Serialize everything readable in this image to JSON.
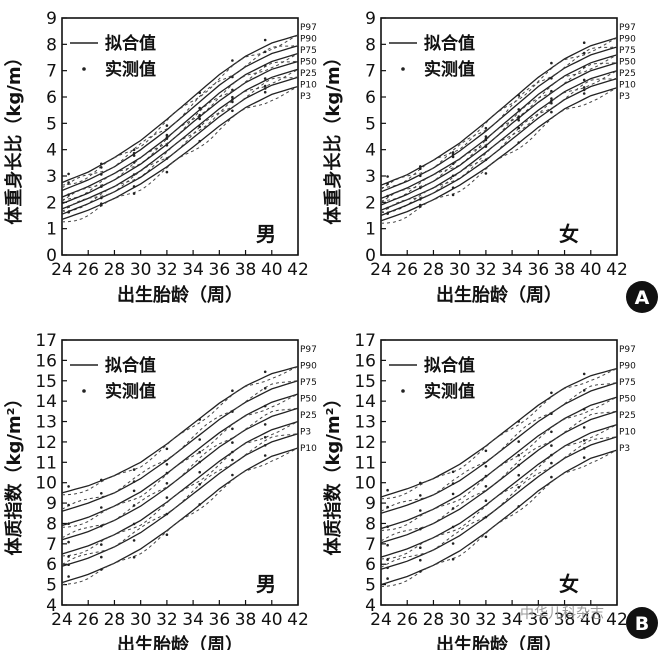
{
  "panel_letters": [
    "A",
    "B"
  ],
  "watermark": {
    "text": "中华儿科杂志"
  },
  "chart_data": [
    {
      "type": "line",
      "ylabel": "体重身长比（kg/m）",
      "xlabel": "出生胎龄（周）",
      "xlim": [
        24,
        42
      ],
      "ylim": [
        0,
        9
      ],
      "xticks": [
        24,
        26,
        28,
        30,
        32,
        34,
        36,
        38,
        40,
        42
      ],
      "yticks": [
        0,
        1,
        2,
        3,
        4,
        5,
        6,
        7,
        8,
        9
      ],
      "sex": "男",
      "legend": [
        {
          "label": "拟合值",
          "style": "solid"
        },
        {
          "label": "实测值",
          "style": "dots"
        }
      ],
      "percentile_labels": [
        "P97",
        "P90",
        "P75",
        "P50",
        "P25",
        "P10",
        "P3"
      ],
      "x": [
        24,
        26,
        28,
        30,
        32,
        34,
        36,
        38,
        40,
        42
      ],
      "series": [
        {
          "name": "P97",
          "values": [
            2.75,
            3.15,
            3.7,
            4.35,
            5.15,
            6.0,
            6.85,
            7.55,
            8.05,
            8.35
          ]
        },
        {
          "name": "P90",
          "values": [
            2.45,
            2.85,
            3.35,
            4.0,
            4.75,
            5.6,
            6.45,
            7.15,
            7.65,
            7.95
          ]
        },
        {
          "name": "P75",
          "values": [
            2.2,
            2.6,
            3.1,
            3.7,
            4.45,
            5.3,
            6.15,
            6.85,
            7.35,
            7.65
          ]
        },
        {
          "name": "P50",
          "values": [
            1.95,
            2.35,
            2.85,
            3.45,
            4.2,
            5.05,
            5.85,
            6.55,
            7.05,
            7.35
          ]
        },
        {
          "name": "P25",
          "values": [
            1.75,
            2.15,
            2.6,
            3.2,
            3.95,
            4.75,
            5.55,
            6.25,
            6.75,
            7.05
          ]
        },
        {
          "name": "P10",
          "values": [
            1.55,
            1.95,
            2.4,
            2.95,
            3.65,
            4.45,
            5.25,
            5.95,
            6.45,
            6.75
          ]
        },
        {
          "name": "P3",
          "values": [
            1.35,
            1.7,
            2.15,
            2.7,
            3.35,
            4.1,
            4.9,
            5.6,
            6.1,
            6.4
          ]
        }
      ]
    },
    {
      "type": "line",
      "ylabel": "体重身长比（kg/m）",
      "xlabel": "出生胎龄（周）",
      "xlim": [
        24,
        42
      ],
      "ylim": [
        0,
        9
      ],
      "xticks": [
        24,
        26,
        28,
        30,
        32,
        34,
        36,
        38,
        40,
        42
      ],
      "yticks": [
        0,
        1,
        2,
        3,
        4,
        5,
        6,
        7,
        8,
        9
      ],
      "sex": "女",
      "legend": [
        {
          "label": "拟合值",
          "style": "solid"
        },
        {
          "label": "实测值",
          "style": "dots"
        }
      ],
      "percentile_labels": [
        "P97",
        "P90",
        "P75",
        "P50",
        "P25",
        "P10",
        "P3"
      ],
      "x": [
        24,
        26,
        28,
        30,
        32,
        34,
        36,
        38,
        40,
        42
      ],
      "series": [
        {
          "name": "P97",
          "values": [
            2.65,
            3.05,
            3.6,
            4.25,
            5.05,
            5.9,
            6.75,
            7.45,
            7.95,
            8.25
          ]
        },
        {
          "name": "P90",
          "values": [
            2.4,
            2.8,
            3.3,
            3.95,
            4.7,
            5.55,
            6.4,
            7.1,
            7.6,
            7.9
          ]
        },
        {
          "name": "P75",
          "values": [
            2.15,
            2.55,
            3.05,
            3.65,
            4.4,
            5.25,
            6.1,
            6.8,
            7.3,
            7.6
          ]
        },
        {
          "name": "P50",
          "values": [
            1.9,
            2.3,
            2.8,
            3.4,
            4.15,
            5.0,
            5.8,
            6.5,
            7.0,
            7.3
          ]
        },
        {
          "name": "P25",
          "values": [
            1.7,
            2.1,
            2.55,
            3.15,
            3.9,
            4.7,
            5.5,
            6.2,
            6.7,
            7.0
          ]
        },
        {
          "name": "P10",
          "values": [
            1.5,
            1.9,
            2.35,
            2.9,
            3.6,
            4.4,
            5.2,
            5.9,
            6.4,
            6.7
          ]
        },
        {
          "name": "P3",
          "values": [
            1.3,
            1.65,
            2.1,
            2.65,
            3.3,
            4.05,
            4.85,
            5.55,
            6.05,
            6.35
          ]
        }
      ]
    },
    {
      "type": "line",
      "ylabel": "体质指数（kg/m²）",
      "xlabel": "出生胎龄（周）",
      "xlim": [
        24,
        42
      ],
      "ylim": [
        4,
        17
      ],
      "xticks": [
        24,
        26,
        28,
        30,
        32,
        34,
        36,
        38,
        40,
        42
      ],
      "yticks": [
        4,
        5,
        6,
        7,
        8,
        9,
        10,
        11,
        12,
        13,
        14,
        15,
        16,
        17
      ],
      "sex": "男",
      "legend": [
        {
          "label": "拟合值",
          "style": "solid"
        },
        {
          "label": "实测值",
          "style": "dots"
        }
      ],
      "percentile_labels": [
        "P97",
        "P90",
        "P75",
        "P50",
        "P25",
        "P3",
        "P10"
      ],
      "x": [
        24,
        26,
        28,
        30,
        32,
        34,
        36,
        38,
        40,
        42
      ],
      "series": [
        {
          "name": "P97",
          "values": [
            9.5,
            9.85,
            10.35,
            11.0,
            11.9,
            12.9,
            13.9,
            14.75,
            15.35,
            15.7
          ]
        },
        {
          "name": "P90",
          "values": [
            8.6,
            9.0,
            9.5,
            10.2,
            11.1,
            12.1,
            13.1,
            13.95,
            14.6,
            15.0
          ]
        },
        {
          "name": "P75",
          "values": [
            7.9,
            8.3,
            8.85,
            9.55,
            10.45,
            11.45,
            12.45,
            13.3,
            13.95,
            14.35
          ]
        },
        {
          "name": "P50",
          "values": [
            7.2,
            7.6,
            8.15,
            8.85,
            9.75,
            10.75,
            11.75,
            12.6,
            13.25,
            13.65
          ]
        },
        {
          "name": "P25",
          "values": [
            6.5,
            6.9,
            7.45,
            8.15,
            9.05,
            10.05,
            11.05,
            11.95,
            12.6,
            13.0
          ]
        },
        {
          "name": "P10",
          "values": [
            5.9,
            6.3,
            6.85,
            7.55,
            8.45,
            9.45,
            10.45,
            11.35,
            12.0,
            12.4
          ]
        },
        {
          "name": "P3",
          "values": [
            5.1,
            5.5,
            6.05,
            6.75,
            7.65,
            8.65,
            9.7,
            10.6,
            11.3,
            11.7
          ]
        }
      ]
    },
    {
      "type": "line",
      "ylabel": "体质指数（kg/m²）",
      "xlabel": "出生胎龄（周）",
      "xlim": [
        24,
        42
      ],
      "ylim": [
        4,
        17
      ],
      "xticks": [
        24,
        26,
        28,
        30,
        32,
        34,
        36,
        38,
        40,
        42
      ],
      "yticks": [
        4,
        5,
        6,
        7,
        8,
        9,
        10,
        11,
        12,
        13,
        14,
        15,
        16,
        17
      ],
      "sex": "女",
      "legend": [
        {
          "label": "拟合值",
          "style": "solid"
        },
        {
          "label": "实测值",
          "style": "dots"
        }
      ],
      "percentile_labels": [
        "P97",
        "P90",
        "P75",
        "P50",
        "P25",
        "P10",
        "P3"
      ],
      "x": [
        24,
        26,
        28,
        30,
        32,
        34,
        36,
        38,
        40,
        42
      ],
      "series": [
        {
          "name": "P97",
          "values": [
            9.3,
            9.7,
            10.2,
            10.9,
            11.8,
            12.8,
            13.8,
            14.65,
            15.25,
            15.6
          ]
        },
        {
          "name": "P90",
          "values": [
            8.5,
            8.9,
            9.4,
            10.1,
            11.0,
            12.0,
            13.0,
            13.85,
            14.5,
            14.9
          ]
        },
        {
          "name": "P75",
          "values": [
            7.75,
            8.15,
            8.7,
            9.4,
            10.3,
            11.3,
            12.3,
            13.15,
            13.8,
            14.2
          ]
        },
        {
          "name": "P50",
          "values": [
            7.05,
            7.45,
            8.0,
            8.7,
            9.6,
            10.6,
            11.6,
            12.45,
            13.1,
            13.5
          ]
        },
        {
          "name": "P25",
          "values": [
            6.35,
            6.75,
            7.3,
            8.0,
            8.9,
            9.9,
            10.9,
            11.8,
            12.45,
            12.85
          ]
        },
        {
          "name": "P10",
          "values": [
            5.75,
            6.15,
            6.7,
            7.4,
            8.3,
            9.3,
            10.3,
            11.2,
            11.85,
            12.25
          ]
        },
        {
          "name": "P3",
          "values": [
            5.0,
            5.4,
            5.95,
            6.65,
            7.55,
            8.55,
            9.6,
            10.5,
            11.2,
            11.6
          ]
        }
      ]
    }
  ]
}
